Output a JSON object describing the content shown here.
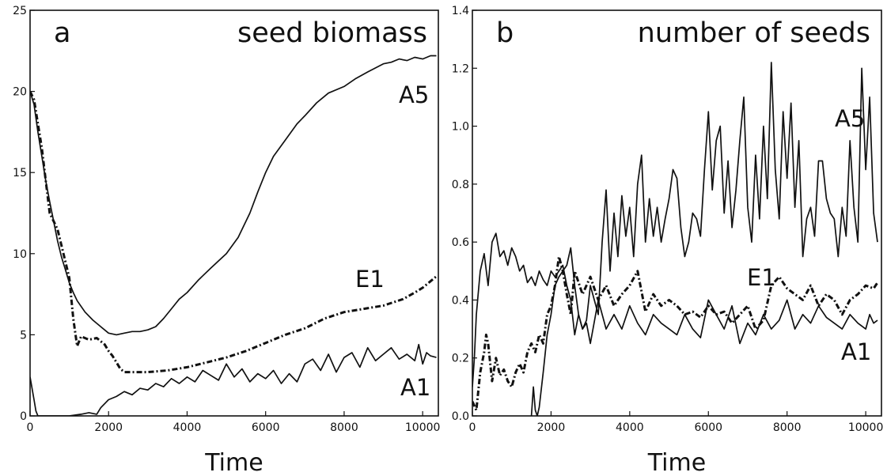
{
  "chart_data": [
    {
      "type": "line",
      "panel_label": "a",
      "title": "seed biomass",
      "xlabel": "Time",
      "ylabel": "",
      "xlim": [
        0,
        10400
      ],
      "ylim": [
        0,
        25
      ],
      "xticks": [
        0,
        2000,
        4000,
        6000,
        8000,
        10000
      ],
      "yticks": [
        0,
        5,
        10,
        15,
        20,
        25
      ],
      "grid": false,
      "series": [
        {
          "name": "A5",
          "style": "solid",
          "x": [
            0,
            100,
            200,
            300,
            400,
            500,
            600,
            700,
            800,
            900,
            1000,
            1100,
            1200,
            1400,
            1600,
            1800,
            2000,
            2200,
            2400,
            2600,
            2800,
            3000,
            3200,
            3400,
            3600,
            3800,
            4000,
            4300,
            4600,
            5000,
            5300,
            5600,
            5800,
            6000,
            6200,
            6500,
            6800,
            7000,
            7300,
            7600,
            8000,
            8300,
            8600,
            9000,
            9200,
            9400,
            9600,
            9800,
            10000,
            10200,
            10350
          ],
          "y": [
            20,
            19.2,
            17.5,
            16,
            14.5,
            13.2,
            12,
            10.8,
            9.8,
            9,
            8.2,
            7.6,
            7.1,
            6.4,
            5.9,
            5.5,
            5.1,
            5.0,
            5.1,
            5.2,
            5.2,
            5.3,
            5.5,
            6.0,
            6.6,
            7.2,
            7.6,
            8.4,
            9.1,
            10.0,
            11.0,
            12.5,
            13.8,
            15.0,
            16.0,
            17.0,
            18.0,
            18.5,
            19.3,
            19.9,
            20.3,
            20.8,
            21.2,
            21.7,
            21.8,
            22.0,
            21.9,
            22.1,
            22.0,
            22.2,
            22.2
          ]
        },
        {
          "name": "E1",
          "style": "dash-dot",
          "x": [
            0,
            100,
            200,
            300,
            400,
            500,
            600,
            700,
            800,
            900,
            1000,
            1100,
            1200,
            1300,
            1500,
            1700,
            1900,
            2000,
            2100,
            2200,
            2300,
            2400,
            2600,
            3000,
            3500,
            4000,
            4500,
            5000,
            5500,
            6000,
            6500,
            7000,
            7500,
            8000,
            8500,
            9000,
            9500,
            9800,
            10000,
            10200,
            10350
          ],
          "y": [
            20,
            19.5,
            18,
            16.5,
            14.5,
            12.5,
            12,
            11.5,
            10.5,
            9.5,
            8.5,
            6,
            4.3,
            4.9,
            4.7,
            4.8,
            4.4,
            4.0,
            3.7,
            3.3,
            2.9,
            2.7,
            2.7,
            2.7,
            2.8,
            3.0,
            3.3,
            3.6,
            4.0,
            4.5,
            5.0,
            5.4,
            6.0,
            6.4,
            6.6,
            6.8,
            7.2,
            7.6,
            7.9,
            8.3,
            8.6
          ]
        },
        {
          "name": "A1",
          "style": "solid",
          "x": [
            0,
            100,
            150,
            200,
            1000,
            1300,
            1500,
            1700,
            1800,
            2000,
            2200,
            2400,
            2600,
            2800,
            3000,
            3200,
            3400,
            3600,
            3800,
            4000,
            4200,
            4400,
            4600,
            4800,
            5000,
            5200,
            5400,
            5600,
            5800,
            6000,
            6200,
            6400,
            6600,
            6800,
            7000,
            7200,
            7400,
            7600,
            7800,
            8000,
            8200,
            8400,
            8600,
            8800,
            9000,
            9200,
            9400,
            9600,
            9800,
            9900,
            10000,
            10100,
            10200,
            10350
          ],
          "y": [
            2.4,
            1.0,
            0.3,
            0,
            0,
            0.1,
            0.2,
            0.1,
            0.5,
            1.0,
            1.2,
            1.5,
            1.3,
            1.7,
            1.6,
            2.0,
            1.8,
            2.3,
            2.0,
            2.4,
            2.1,
            2.8,
            2.5,
            2.2,
            3.2,
            2.4,
            2.9,
            2.1,
            2.6,
            2.3,
            2.8,
            2.0,
            2.6,
            2.1,
            3.2,
            3.5,
            2.8,
            3.8,
            2.7,
            3.6,
            3.9,
            3.0,
            4.2,
            3.4,
            3.8,
            4.2,
            3.5,
            3.8,
            3.4,
            4.4,
            3.2,
            3.9,
            3.7,
            3.6
          ]
        }
      ],
      "annotations": [
        "A5",
        "E1",
        "A1"
      ]
    },
    {
      "type": "line",
      "panel_label": "b",
      "title": "number of seeds",
      "xlabel": "Time",
      "ylabel": "",
      "xlim": [
        0,
        10400
      ],
      "ylim": [
        0,
        1.4
      ],
      "xticks": [
        0,
        2000,
        4000,
        6000,
        8000,
        10000
      ],
      "yticks": [
        0.0,
        0.2,
        0.4,
        0.6,
        0.8,
        1.0,
        1.2,
        1.4
      ],
      "grid": false,
      "series": [
        {
          "name": "A5",
          "style": "solid",
          "x": [
            1500,
            1550,
            1600,
            1650,
            1700,
            1800,
            1900,
            2000,
            2100,
            2200,
            2300,
            2400,
            2500,
            2600,
            2700,
            2800,
            2900,
            3000,
            3100,
            3200,
            3300,
            3400,
            3500,
            3600,
            3700,
            3800,
            3900,
            4000,
            4100,
            4200,
            4300,
            4400,
            4500,
            4600,
            4700,
            4800,
            4900,
            5000,
            5100,
            5200,
            5300,
            5400,
            5500,
            5600,
            5700,
            5800,
            5900,
            6000,
            6100,
            6200,
            6300,
            6400,
            6500,
            6600,
            6700,
            6800,
            6900,
            7000,
            7100,
            7200,
            7300,
            7400,
            7500,
            7600,
            7700,
            7800,
            7900,
            8000,
            8100,
            8200,
            8300,
            8400,
            8500,
            8600,
            8700,
            8800,
            8900,
            9000,
            9100,
            9200,
            9300,
            9400,
            9500,
            9600,
            9700,
            9800,
            9900,
            10000,
            10100,
            10200,
            10300
          ],
          "y": [
            0,
            0.1,
            0.02,
            0,
            0.03,
            0.15,
            0.28,
            0.35,
            0.45,
            0.48,
            0.5,
            0.52,
            0.58,
            0.45,
            0.35,
            0.3,
            0.33,
            0.45,
            0.4,
            0.35,
            0.6,
            0.78,
            0.5,
            0.7,
            0.55,
            0.76,
            0.62,
            0.72,
            0.55,
            0.8,
            0.9,
            0.6,
            0.75,
            0.62,
            0.72,
            0.6,
            0.68,
            0.75,
            0.85,
            0.82,
            0.65,
            0.55,
            0.6,
            0.7,
            0.68,
            0.62,
            0.85,
            1.05,
            0.78,
            0.95,
            1.0,
            0.7,
            0.88,
            0.65,
            0.78,
            0.95,
            1.1,
            0.72,
            0.6,
            0.9,
            0.68,
            1.0,
            0.75,
            1.22,
            0.85,
            0.68,
            1.05,
            0.82,
            1.08,
            0.72,
            0.95,
            0.55,
            0.68,
            0.72,
            0.62,
            0.88,
            0.88,
            0.75,
            0.7,
            0.68,
            0.55,
            0.72,
            0.62,
            0.95,
            0.72,
            0.6,
            1.2,
            0.85,
            1.1,
            0.7,
            0.6
          ]
        },
        {
          "name": "E1",
          "style": "dash-dot",
          "x": [
            0,
            100,
            200,
            300,
            350,
            400,
            500,
            600,
            700,
            800,
            900,
            1000,
            1100,
            1200,
            1300,
            1400,
            1500,
            1600,
            1700,
            1800,
            1900,
            2000,
            2100,
            2200,
            2300,
            2400,
            2500,
            2600,
            2800,
            3000,
            3200,
            3400,
            3600,
            3800,
            4000,
            4200,
            4400,
            4600,
            4800,
            5000,
            5200,
            5400,
            5600,
            5800,
            6000,
            6200,
            6400,
            6600,
            6800,
            7000,
            7200,
            7400,
            7600,
            7800,
            8000,
            8200,
            8400,
            8600,
            8800,
            9000,
            9200,
            9400,
            9600,
            9800,
            10000,
            10200,
            10300
          ],
          "y": [
            0.05,
            0.02,
            0.15,
            0.22,
            0.28,
            0.25,
            0.12,
            0.2,
            0.14,
            0.16,
            0.12,
            0.1,
            0.15,
            0.18,
            0.15,
            0.22,
            0.25,
            0.22,
            0.28,
            0.25,
            0.35,
            0.38,
            0.45,
            0.55,
            0.5,
            0.42,
            0.35,
            0.5,
            0.42,
            0.48,
            0.4,
            0.45,
            0.38,
            0.42,
            0.45,
            0.5,
            0.36,
            0.42,
            0.38,
            0.4,
            0.38,
            0.35,
            0.36,
            0.34,
            0.38,
            0.35,
            0.36,
            0.32,
            0.35,
            0.38,
            0.3,
            0.33,
            0.45,
            0.48,
            0.44,
            0.42,
            0.4,
            0.45,
            0.38,
            0.42,
            0.4,
            0.35,
            0.4,
            0.42,
            0.45,
            0.44,
            0.46
          ]
        },
        {
          "name": "A1",
          "style": "solid",
          "x": [
            0,
            50,
            100,
            200,
            300,
            400,
            500,
            600,
            700,
            800,
            900,
            1000,
            1100,
            1200,
            1300,
            1400,
            1500,
            1600,
            1700,
            1800,
            1900,
            2000,
            2100,
            2200,
            2300,
            2400,
            2500,
            2600,
            2700,
            2800,
            2900,
            3000,
            3200,
            3400,
            3600,
            3800,
            4000,
            4200,
            4400,
            4600,
            4800,
            5000,
            5200,
            5400,
            5600,
            5800,
            6000,
            6200,
            6400,
            6600,
            6800,
            7000,
            7200,
            7400,
            7600,
            7800,
            8000,
            8200,
            8400,
            8600,
            8800,
            9000,
            9200,
            9400,
            9600,
            9800,
            10000,
            10100,
            10200,
            10300
          ],
          "y": [
            0.1,
            0.2,
            0.35,
            0.5,
            0.56,
            0.45,
            0.6,
            0.63,
            0.55,
            0.57,
            0.52,
            0.58,
            0.55,
            0.5,
            0.52,
            0.46,
            0.48,
            0.45,
            0.5,
            0.47,
            0.45,
            0.5,
            0.48,
            0.5,
            0.52,
            0.45,
            0.4,
            0.28,
            0.35,
            0.3,
            0.32,
            0.25,
            0.4,
            0.3,
            0.35,
            0.3,
            0.38,
            0.32,
            0.28,
            0.35,
            0.32,
            0.3,
            0.28,
            0.35,
            0.3,
            0.27,
            0.4,
            0.35,
            0.3,
            0.38,
            0.25,
            0.32,
            0.28,
            0.35,
            0.3,
            0.33,
            0.4,
            0.3,
            0.35,
            0.32,
            0.38,
            0.34,
            0.32,
            0.3,
            0.35,
            0.32,
            0.3,
            0.35,
            0.32,
            0.33
          ]
        }
      ],
      "annotations": [
        "A5",
        "E1",
        "A1"
      ]
    }
  ]
}
